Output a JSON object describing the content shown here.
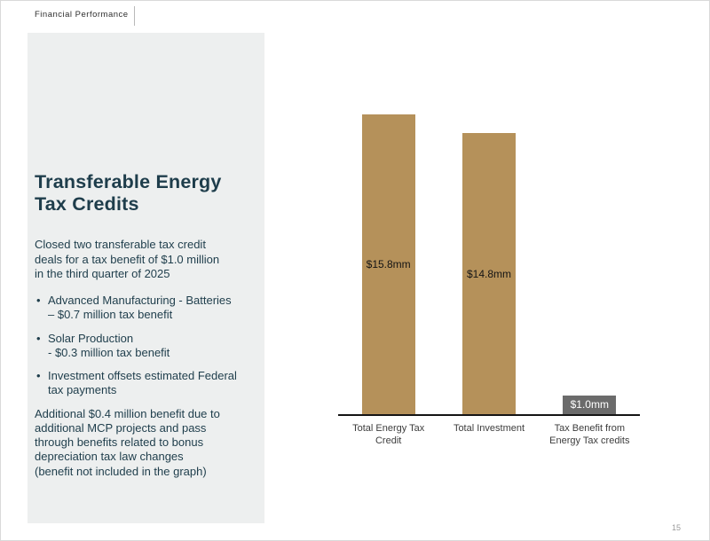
{
  "header": {
    "eyebrow": "Financial Performance"
  },
  "panel": {
    "title_line1": "Transferable Energy",
    "title_line2": "Tax Credits",
    "intro": "Closed two transferable tax credit\ndeals for a tax benefit of $1.0 million\nin the third quarter of 2025",
    "bullets": [
      "Advanced Manufacturing - Batteries\n– $0.7 million tax benefit",
      "Solar Production\n- $0.3 million tax benefit",
      "Investment offsets estimated Federal\ntax payments"
    ],
    "footnote": "Additional $0.4 million benefit due to\nadditional MCP projects and pass\nthrough benefits related to bonus\ndepreciation tax law changes\n(benefit not included in the graph)"
  },
  "footer": {
    "page_number": "15"
  },
  "chart_data": {
    "type": "bar",
    "categories": [
      "Total Energy Tax\nCredit",
      "Total Investment",
      "Tax Benefit from\nEnergy Tax credits"
    ],
    "values": [
      15.8,
      14.8,
      1.0
    ],
    "value_labels": [
      "$15.8mm",
      "$14.8mm",
      "$1.0mm"
    ],
    "bar_colors": [
      "#b5915a",
      "#b5915a",
      "#6b6b6b"
    ],
    "value_label_colors": [
      "#141414",
      "#141414",
      "#ffffff"
    ],
    "title": "",
    "xlabel": "",
    "ylabel": "",
    "ylim": [
      0,
      16.5
    ],
    "grid": false,
    "legend": "none",
    "axis_color": "#151515"
  }
}
